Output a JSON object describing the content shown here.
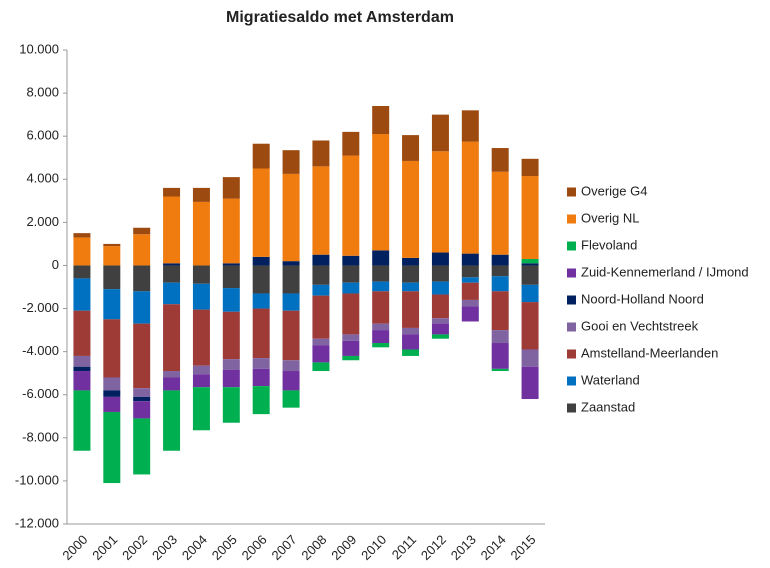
{
  "chart_data": {
    "type": "stacked_bar",
    "title": "Migratiesaldo met Amsterdam",
    "categories": [
      "2000",
      "2001",
      "2002",
      "2003",
      "2004",
      "2005",
      "2006",
      "2007",
      "2008",
      "2009",
      "2010",
      "2011",
      "2012",
      "2013",
      "2014",
      "2015"
    ],
    "series": [
      {
        "name": "Zaanstad",
        "color": "#404040",
        "values": [
          -600,
          -1100,
          -1200,
          -800,
          -850,
          -1050,
          -1300,
          -1300,
          -900,
          -800,
          -750,
          -800,
          -750,
          -550,
          -500,
          -900
        ]
      },
      {
        "name": "Waterland",
        "color": "#0070c0",
        "values": [
          -1500,
          -1400,
          -1500,
          -1000,
          -1200,
          -1100,
          -700,
          -800,
          -500,
          -500,
          -450,
          -400,
          -600,
          -250,
          -700,
          -800
        ]
      },
      {
        "name": "Amstelland-Meerlanden",
        "color": "#9e3b36",
        "values": [
          -2100,
          -2700,
          -3000,
          -3100,
          -2600,
          -2200,
          -2300,
          -2300,
          -2000,
          -1900,
          -1500,
          -1700,
          -1100,
          -800,
          -1800,
          -2200
        ]
      },
      {
        "name": "Gooi en Vechtstreek",
        "color": "#8064a2",
        "values": [
          -500,
          -600,
          -400,
          -300,
          -400,
          -500,
          -500,
          -500,
          -300,
          -300,
          -300,
          -300,
          -250,
          -300,
          -600,
          -800
        ]
      },
      {
        "name": "Noord-Holland Noord",
        "color": "#002060",
        "values": [
          -200,
          -300,
          -200,
          100,
          0,
          100,
          400,
          200,
          500,
          450,
          700,
          350,
          600,
          550,
          500,
          100
        ]
      },
      {
        "name": "Zuid-Kennemerland / IJmond",
        "color": "#7030a0",
        "values": [
          -900,
          -700,
          -800,
          -600,
          -600,
          -800,
          -800,
          -900,
          -800,
          -700,
          -600,
          -700,
          -500,
          -700,
          -1200,
          -1500
        ]
      },
      {
        "name": "Flevoland",
        "color": "#00b050",
        "values": [
          -2800,
          -3300,
          -2600,
          -2800,
          -2000,
          -1650,
          -1300,
          -800,
          -400,
          -200,
          -200,
          -300,
          -200,
          0,
          -100,
          200
        ]
      },
      {
        "name": "Overig NL",
        "color": "#f07c10",
        "values": [
          1300,
          900,
          1450,
          3100,
          2950,
          3000,
          4100,
          4050,
          4100,
          4650,
          5400,
          4500,
          4700,
          5200,
          3850,
          3850
        ]
      },
      {
        "name": "Overige G4",
        "color": "#9c4a0f",
        "values": [
          200,
          100,
          300,
          400,
          650,
          1000,
          1150,
          1100,
          1200,
          1100,
          1300,
          1200,
          1700,
          1450,
          1100,
          800
        ]
      }
    ],
    "ylim": [
      -12000,
      10000
    ],
    "yticks": [
      {
        "value": -12000,
        "label": "-12.000"
      },
      {
        "value": -10000,
        "label": "-10.000"
      },
      {
        "value": -8000,
        "label": "-8.000"
      },
      {
        "value": -6000,
        "label": "-6.000"
      },
      {
        "value": -4000,
        "label": "-4.000"
      },
      {
        "value": -2000,
        "label": "-2.000"
      },
      0,
      {
        "value": 2000,
        "label": "2.000"
      },
      {
        "value": 4000,
        "label": "4.000"
      },
      {
        "value": 6000,
        "label": "6.000"
      },
      {
        "value": 8000,
        "label": "8.000"
      },
      {
        "value": 10000,
        "label": "10.000"
      }
    ],
    "legend": "right"
  }
}
